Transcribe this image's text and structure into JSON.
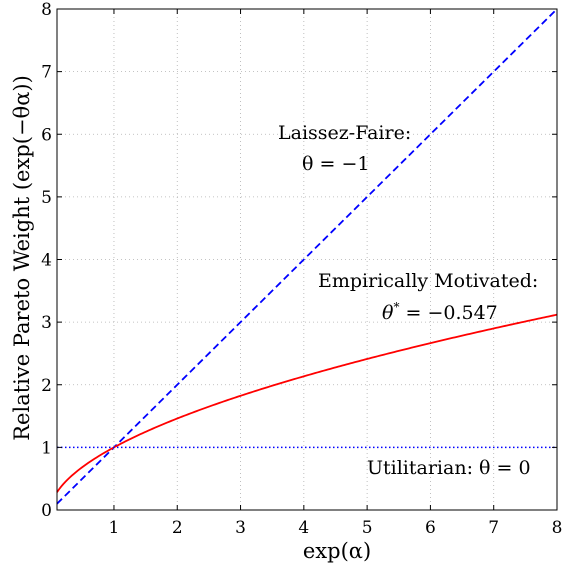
{
  "chart_data": {
    "type": "line",
    "title": "",
    "xlabel": "exp(α)",
    "ylabel": "Relative Pareto Weight (exp(−θα))",
    "xlim": [
      0.1,
      8
    ],
    "ylim": [
      0,
      8
    ],
    "xticks": [
      1,
      2,
      3,
      4,
      5,
      6,
      7,
      8
    ],
    "yticks": [
      0,
      1,
      2,
      3,
      4,
      5,
      6,
      7,
      8
    ],
    "grid": true,
    "series": [
      {
        "name": "",
        "theta": -1,
        "style": "dashed",
        "color": "#0000ff",
        "x": [
          0.1,
          1,
          2,
          4,
          8
        ],
        "y": [
          0.1,
          1,
          2,
          4,
          8
        ]
      },
      {
        "name": "",
        "theta": -0.547,
        "style": "solid",
        "color": "#ff0000",
        "x": [
          0.1,
          0.2,
          0.5,
          1,
          2,
          3,
          4,
          5,
          6,
          7,
          8
        ],
        "y": [
          0.284,
          0.415,
          0.685,
          1,
          1.461,
          1.824,
          2.134,
          2.411,
          2.663,
          2.898,
          3.116
        ]
      },
      {
        "name": "",
        "theta": 0,
        "style": "dotted",
        "color": "#0000ff",
        "x": [
          0.1,
          8
        ],
        "y": [
          1,
          1
        ]
      }
    ],
    "annotations": [
      {
        "line1": "Laissez-Faire:",
        "line2": "θ = −1"
      },
      {
        "line1": "Empirically Motivated:",
        "line2_sym": "θ",
        "line2_sup": "*",
        "line2_rest": " = −0.547"
      },
      {
        "line1": "Utilitarian: θ = 0"
      }
    ]
  }
}
